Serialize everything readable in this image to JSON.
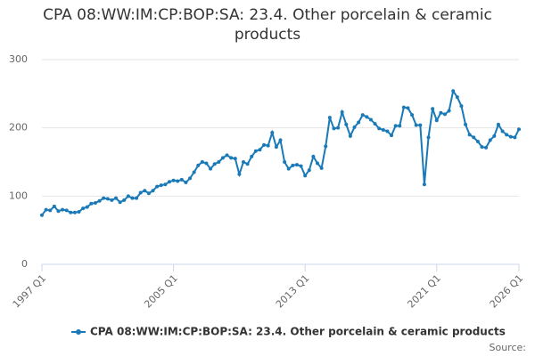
{
  "chart_data": {
    "type": "line",
    "title": "CPA 08:WW:IM:CP:BOP:SA: 23.4. Other porcelain & ceramic products",
    "source": "Source:",
    "categories": [
      "1997 Q1",
      null,
      null,
      null,
      null,
      null,
      null,
      null,
      null,
      null,
      null,
      null,
      null,
      null,
      null,
      null,
      null,
      null,
      null,
      null,
      null,
      null,
      null,
      null,
      null,
      null,
      null,
      null,
      null,
      null,
      null,
      null,
      "2005 Q1",
      null,
      null,
      null,
      null,
      null,
      null,
      null,
      null,
      null,
      null,
      null,
      null,
      null,
      null,
      null,
      null,
      null,
      null,
      null,
      null,
      null,
      null,
      null,
      null,
      null,
      null,
      null,
      null,
      null,
      null,
      null,
      "2013 Q1",
      null,
      null,
      null,
      null,
      null,
      null,
      null,
      null,
      null,
      null,
      null,
      null,
      null,
      null,
      null,
      null,
      null,
      null,
      null,
      null,
      null,
      null,
      null,
      null,
      null,
      null,
      null,
      null,
      null,
      null,
      null,
      "2021 Q1",
      null,
      null,
      null,
      null,
      null,
      null,
      null,
      null,
      null,
      null,
      null,
      null,
      null,
      null,
      null,
      null,
      null,
      null,
      null,
      "2026 Q1"
    ],
    "series": [
      {
        "name": "CPA 08:WW:IM:CP:BOP:SA: 23.4. Other porcelain & ceramic products",
        "color": "#1a7ab7",
        "values": [
          72,
          80,
          79,
          85,
          78,
          80,
          79,
          76,
          76,
          77,
          82,
          84,
          89,
          90,
          93,
          97,
          96,
          94,
          97,
          91,
          94,
          100,
          97,
          97,
          105,
          108,
          104,
          108,
          114,
          116,
          117,
          121,
          123,
          122,
          124,
          120,
          126,
          135,
          145,
          150,
          148,
          140,
          147,
          150,
          156,
          160,
          156,
          155,
          132,
          150,
          147,
          158,
          166,
          168,
          175,
          174,
          193,
          172,
          182,
          150,
          140,
          145,
          146,
          144,
          130,
          138,
          158,
          148,
          141,
          173,
          215,
          199,
          200,
          223,
          205,
          188,
          201,
          208,
          219,
          216,
          212,
          206,
          199,
          197,
          195,
          189,
          203,
          203,
          230,
          229,
          219,
          204,
          204,
          117,
          186,
          228,
          211,
          222,
          220,
          225,
          254,
          245,
          232,
          205,
          190,
          186,
          180,
          172,
          171,
          182,
          188,
          205,
          195,
          190,
          187,
          186,
          198
        ]
      }
    ],
    "ylim": [
      0,
      300
    ],
    "yticks": [
      0,
      100,
      200,
      300
    ],
    "grid": true,
    "legend": "bottom"
  }
}
